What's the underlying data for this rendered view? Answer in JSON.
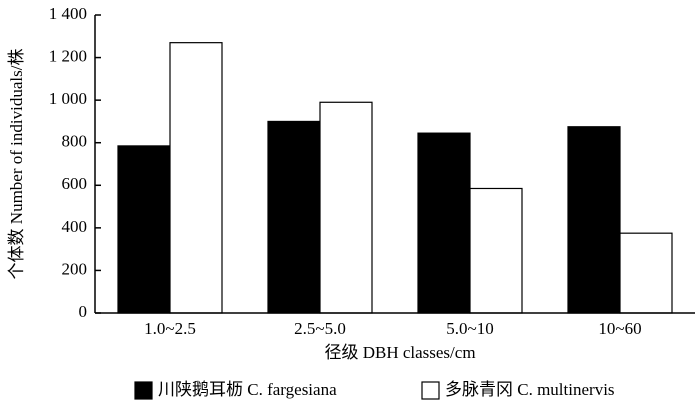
{
  "chart_data": {
    "type": "bar",
    "categories": [
      "1.0~2.5",
      "2.5~5.0",
      "5.0~10",
      "10~60"
    ],
    "series": [
      {
        "name": "川陕鹅耳枥 C. fargesiana",
        "color": "#000000",
        "values": [
          785,
          900,
          845,
          875
        ]
      },
      {
        "name": "多脉青冈 C. multinervis",
        "color": "#ffffff",
        "values": [
          1270,
          990,
          585,
          375
        ]
      }
    ],
    "x_label": "径级 DBH classes/cm",
    "y_label": "个体数 Number of individuals/株",
    "ylim": [
      0,
      1400
    ],
    "yticks": [
      0,
      200,
      400,
      600,
      800,
      {
        "value": 1000,
        "label": "1 000"
      },
      {
        "value": 1200,
        "label": "1 200"
      },
      {
        "value": 1400,
        "label": "1 400"
      }
    ],
    "legend": "bottom"
  }
}
